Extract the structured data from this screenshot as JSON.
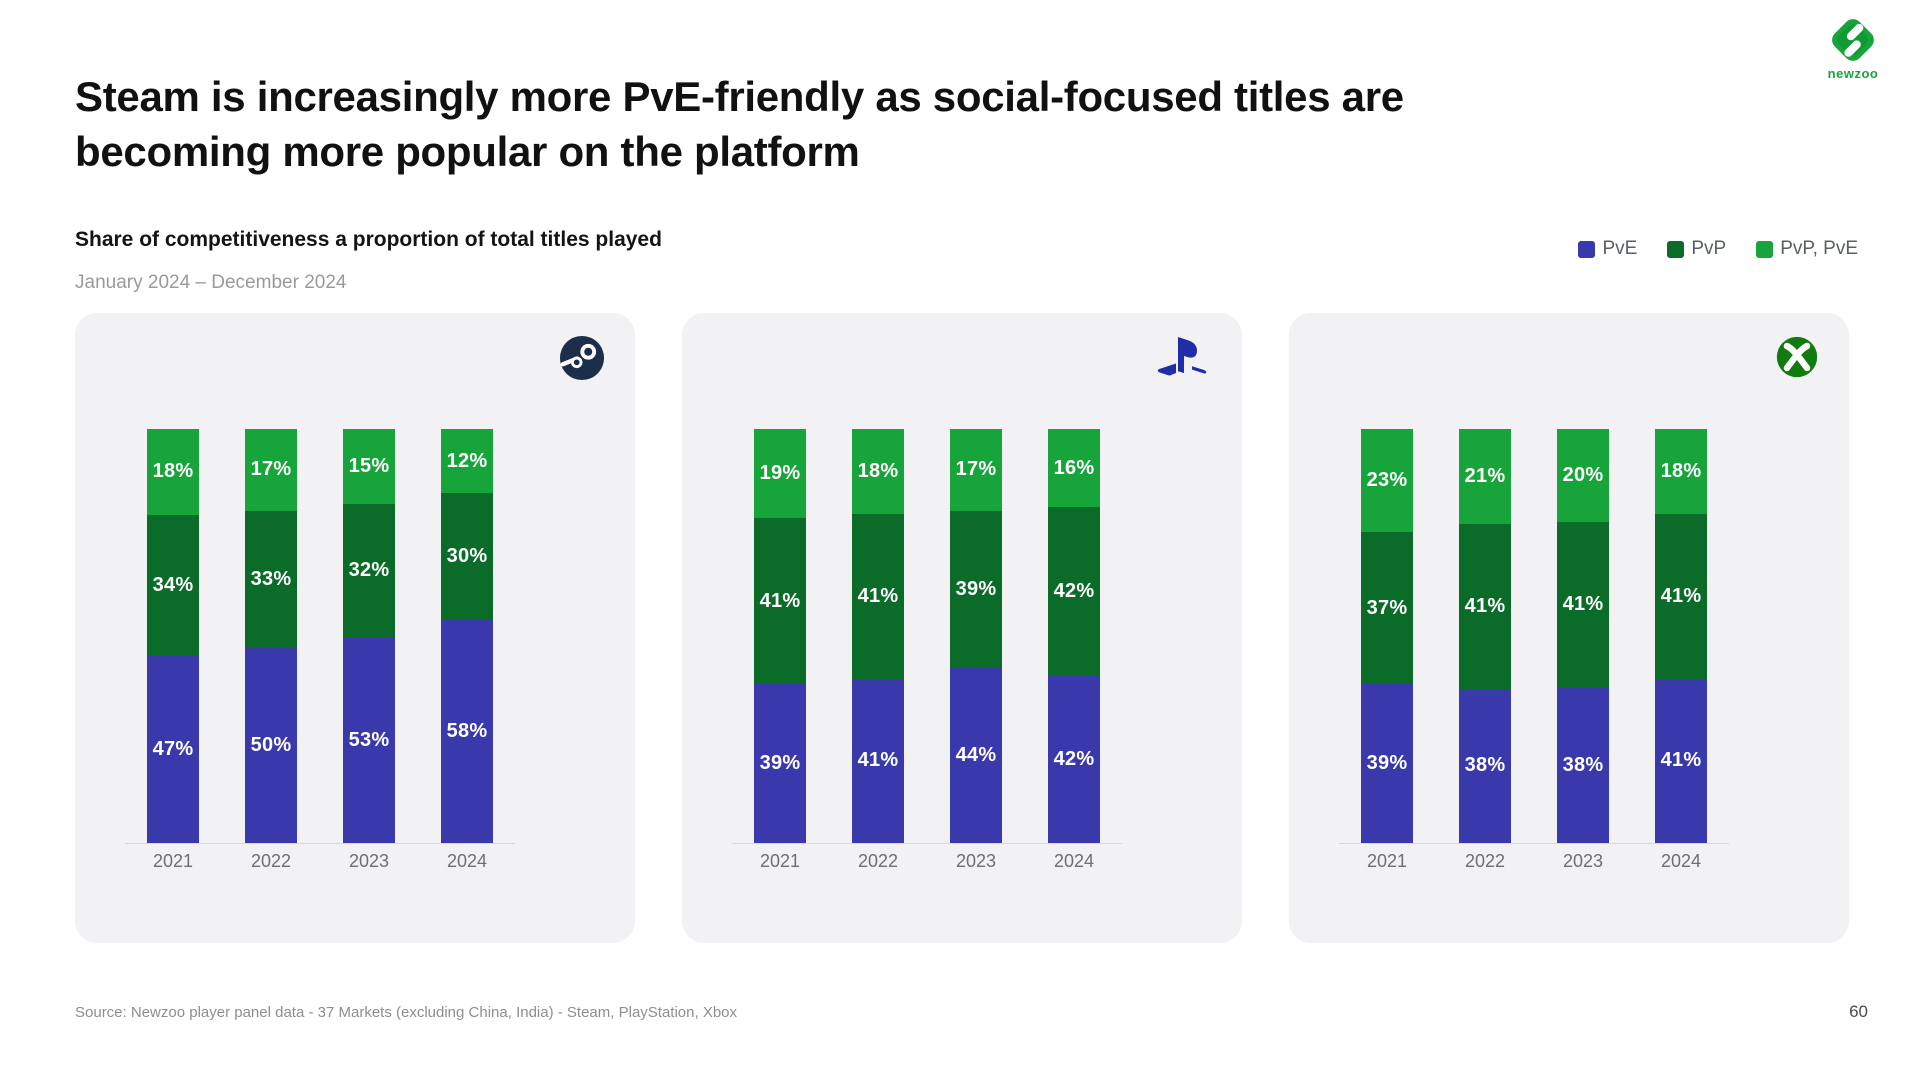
{
  "slide": {
    "title": "Steam is increasingly more PvE-friendly as social-focused titles are becoming more popular on the platform",
    "subtitle": "Share of competitiveness a proportion of total titles played",
    "date_range": "January 2024 – December 2024",
    "source": "Source: Newzoo player panel data - 37 Markets (excluding China, India) - Steam, PlayStation, Xbox",
    "page_number": "60",
    "logo_text": "newzoo"
  },
  "colors": {
    "pve_blue": "#3A39AC",
    "pvp_dark_green": "#0B6B28",
    "pvp_pve_light_green": "#17A53B",
    "panel_background": "#F2F2F4"
  },
  "legend": [
    {
      "label": "PvE",
      "color": "#3A39AC"
    },
    {
      "label": "PvP",
      "color": "#0B6B28"
    },
    {
      "label": "PvP, PvE",
      "color": "#17A53B"
    }
  ],
  "chart_data": [
    {
      "type": "bar",
      "stacked": true,
      "platform": "Steam",
      "icon": "steam-icon",
      "categories": [
        "2021",
        "2022",
        "2023",
        "2024"
      ],
      "series": [
        {
          "name": "PvE",
          "color": "#3A39AC",
          "values": [
            47,
            50,
            53,
            58
          ]
        },
        {
          "name": "PvP",
          "color": "#0B6B28",
          "values": [
            34,
            33,
            32,
            30
          ]
        },
        {
          "name": "PvP, PvE",
          "color": "#17A53B",
          "values": [
            18,
            17,
            15,
            12
          ]
        }
      ],
      "value_suffix": "%",
      "ylim": [
        0,
        100
      ],
      "grid": false
    },
    {
      "type": "bar",
      "stacked": true,
      "platform": "PlayStation",
      "icon": "playstation-icon",
      "categories": [
        "2021",
        "2022",
        "2023",
        "2024"
      ],
      "series": [
        {
          "name": "PvE",
          "color": "#3A39AC",
          "values": [
            39,
            41,
            44,
            42
          ]
        },
        {
          "name": "PvP",
          "color": "#0B6B28",
          "values": [
            41,
            41,
            39,
            42
          ]
        },
        {
          "name": "PvP, PvE",
          "color": "#17A53B",
          "values": [
            19,
            18,
            17,
            16
          ]
        }
      ],
      "value_suffix": "%",
      "ylim": [
        0,
        100
      ],
      "grid": false
    },
    {
      "type": "bar",
      "stacked": true,
      "platform": "Xbox",
      "icon": "xbox-icon",
      "categories": [
        "2021",
        "2022",
        "2023",
        "2024"
      ],
      "series": [
        {
          "name": "PvE",
          "color": "#3A39AC",
          "values": [
            39,
            38,
            38,
            41
          ]
        },
        {
          "name": "PvP",
          "color": "#0B6B28",
          "values": [
            37,
            41,
            41,
            41
          ]
        },
        {
          "name": "PvP, PvE",
          "color": "#17A53B",
          "values": [
            23,
            21,
            20,
            18
          ]
        }
      ],
      "value_suffix": "%",
      "ylim": [
        0,
        100
      ],
      "grid": false
    }
  ]
}
